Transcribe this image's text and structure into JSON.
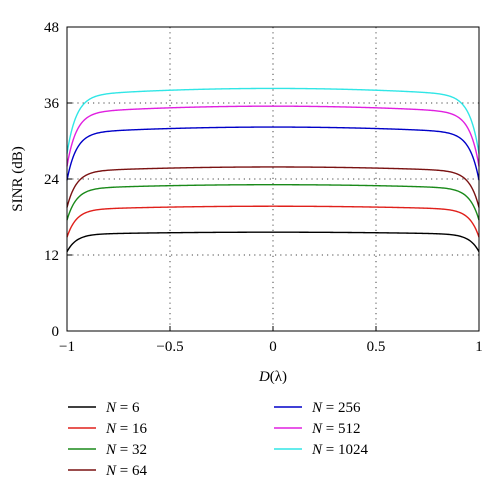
{
  "chart_data": {
    "type": "line",
    "xlabel_var": "D",
    "xlabel_unit": "(λ)",
    "ylabel": "SINR (dB)",
    "xlim": [
      -1,
      1
    ],
    "ylim": [
      0,
      48
    ],
    "x_ticks": [
      -1,
      -0.5,
      0,
      0.5,
      1
    ],
    "x_tick_labels": [
      "−1",
      "−0.5",
      "0",
      "0.5",
      "1"
    ],
    "y_ticks": [
      0,
      12,
      24,
      36,
      48
    ],
    "y_tick_labels": [
      "0",
      "12",
      "24",
      "36",
      "48"
    ],
    "grid": "dotted",
    "grid_x": [
      -0.5,
      0,
      0.5
    ],
    "grid_y": [
      12,
      24,
      36
    ],
    "legend_position": "below, two columns",
    "series": [
      {
        "name_var": "N",
        "name_rest": " = 6",
        "color": "#000000",
        "center": 15.6,
        "edge": 12.5
      },
      {
        "name_var": "N",
        "name_rest": " = 16",
        "color": "#e0201b",
        "center": 19.7,
        "edge": 14.8
      },
      {
        "name_var": "N",
        "name_rest": " = 32",
        "color": "#1a8a1a",
        "center": 23.1,
        "edge": 17.5
      },
      {
        "name_var": "N",
        "name_rest": " = 64",
        "color": "#7a1212",
        "center": 25.9,
        "edge": 19.5
      },
      {
        "name_var": "N",
        "name_rest": " = 256",
        "color": "#0000c8",
        "center": 32.2,
        "edge": 23.8
      },
      {
        "name_var": "N",
        "name_rest": " = 512",
        "color": "#e020e0",
        "center": 35.5,
        "edge": 26.0
      },
      {
        "name_var": "N",
        "name_rest": " = 1024",
        "color": "#30e6e6",
        "center": 38.3,
        "edge": 28.0
      }
    ]
  }
}
